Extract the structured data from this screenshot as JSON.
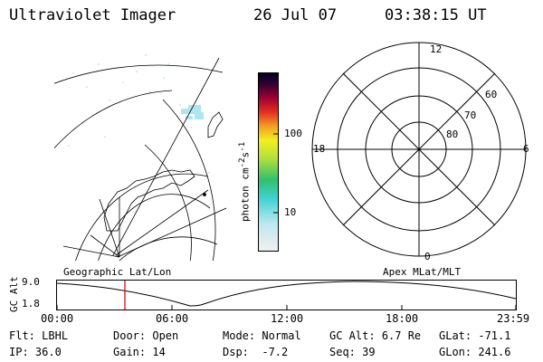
{
  "header": {
    "title": "Ultraviolet Imager",
    "date": "26 Jul 07",
    "time": "03:38:15 UT"
  },
  "colorbar": {
    "label": "photon cm",
    "label_sup1": "-2",
    "label_s": "s",
    "label_sup2": "-1",
    "ticks": [
      "100",
      "10"
    ]
  },
  "polar": {
    "mlt_labels": [
      "12",
      "18",
      "6",
      "0"
    ],
    "lat_labels": [
      "60",
      "70",
      "80"
    ]
  },
  "track": {
    "left_title": "Geographic Lat/Lon",
    "right_title": "Apex MLat/MLT",
    "ylabel": "GC Alt",
    "y_max": "9.0",
    "y_min": "1.8",
    "time_ticks": [
      "00:00",
      "06:00",
      "12:00",
      "18:00",
      "23:59"
    ]
  },
  "footer": {
    "flt_label": "Flt:",
    "flt_value": "LBHL",
    "door_label": "Door:",
    "door_value": "Open",
    "mode_label": "Mode:",
    "mode_value": "Normal",
    "gcalt_label": "GC Alt:",
    "gcalt_value": "6.7 Re",
    "glat_label": "GLat:",
    "glat_value": "-71.1",
    "ip_label": "IP:",
    "ip_value": "36.0",
    "gain_label": "Gain:",
    "gain_value": "14",
    "dsp_label": "Dsp:",
    "dsp_value": "-7.2",
    "seq_label": "Seq:",
    "seq_value": "39",
    "glon_label": "GLon:",
    "glon_value": "241.6"
  },
  "colors": {
    "accent_marker": "#cc0000",
    "emission": "#aee6ee"
  }
}
